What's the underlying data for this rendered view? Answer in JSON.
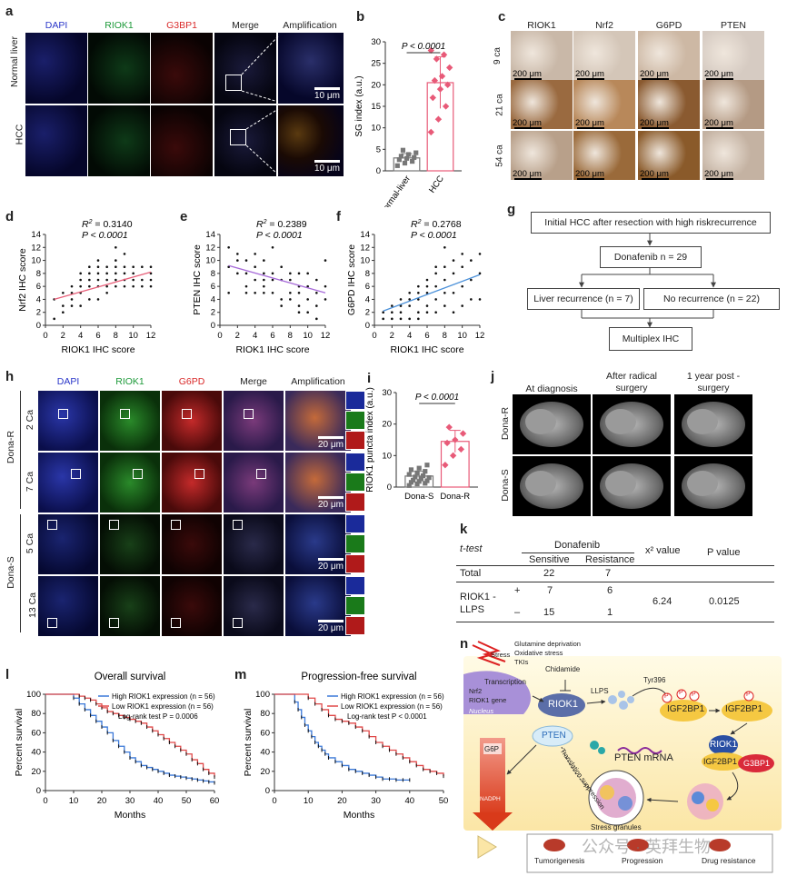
{
  "panels": {
    "a": {
      "label": "a",
      "columns": [
        "DAPI",
        "RIOK1",
        "G3BP1",
        "Merge",
        "Amplification"
      ],
      "column_colors": [
        "#2a36c9",
        "#1e9a3a",
        "#d92a2a",
        "#222222",
        "#222222"
      ],
      "rows": [
        "Normal liver",
        "HCC"
      ],
      "scale": "10 μm"
    },
    "b": {
      "label": "b",
      "ylabel": "SG index (a.u.)",
      "yticks": [
        "0",
        "5",
        "10",
        "15",
        "20",
        "25",
        "30"
      ],
      "categories": [
        "Normal-liver",
        "HCC"
      ],
      "pvalue": "P < 0.0001"
    },
    "c": {
      "label": "c",
      "columns": [
        "RIOK1",
        "Nrf2",
        "G6PD",
        "PTEN"
      ],
      "rows": [
        "9 ca",
        "21 ca",
        "54 ca"
      ],
      "scale": "200 μm"
    },
    "d": {
      "label": "d",
      "r2_prefix": "R",
      "r2_value": " = 0.3140",
      "p": "P < 0.0001",
      "ylabel": "Nrf2 IHC score",
      "xlabel": "RIOK1 IHC score"
    },
    "e": {
      "label": "e",
      "r2_prefix": "R",
      "r2_value": " = 0.2389",
      "p": "P < 0.0001",
      "ylabel": "PTEN IHC score",
      "xlabel": "RIOK1 IHC score"
    },
    "f": {
      "label": "f",
      "r2_prefix": "R",
      "r2_value": " = 0.2768",
      "p": "P < 0.0001",
      "ylabel": "G6PD IHC score",
      "xlabel": "RIOK1 IHC score"
    },
    "g": {
      "label": "g",
      "box1": "Initial HCC after resection with high riskrecurrence",
      "box2": "Donafenib n = 29",
      "box3": "Liver recurrence (n = 7)",
      "box4": "No recurrence (n = 22)",
      "box5": "Multiplex IHC"
    },
    "h": {
      "label": "h",
      "columns": [
        "DAPI",
        "RIOK1",
        "G6PD",
        "Merge",
        "Amplification"
      ],
      "column_colors": [
        "#2a36c9",
        "#1e9a3a",
        "#d92a2a",
        "#222222",
        "#222222"
      ],
      "rows": [
        "2 Ca",
        "7 Ca",
        "5 Ca",
        "13 Ca"
      ],
      "groups": [
        "Dona-R",
        "Dona-S"
      ],
      "scale": "20 μm"
    },
    "i": {
      "label": "i",
      "ylabel": "RIOK1 puncta index (a.u.)",
      "yticks": [
        "0",
        "10",
        "20",
        "30"
      ],
      "categories": [
        "Dona-S",
        "Dona-R"
      ],
      "pvalue": "P < 0.0001"
    },
    "j": {
      "label": "j",
      "columns": [
        "At diagnosis",
        "After radical surgery",
        "1 year post -surgery"
      ],
      "rows": [
        "Dona-R",
        "Dona-S"
      ]
    },
    "k": {
      "label": "k",
      "test": "t-test",
      "group": "Donafenib",
      "sensitive": "Sensitive",
      "resistance": "Resistance",
      "chi": "x² value",
      "pcol": "P value",
      "total": "Total",
      "total_s": "22",
      "total_r": "7",
      "row_label": "RIOK1 - LLPS",
      "plus": "+",
      "minus": "–",
      "plus_s": "7",
      "plus_r": "6",
      "minus_s": "15",
      "minus_r": "1",
      "chi_value": "6.24",
      "p_value": "0.0125"
    },
    "l": {
      "label": "l",
      "title": "Overall survival",
      "legend_high": "High RIOK1 expression (n = 56)",
      "legend_low": "Low RIOK1 expression (n = 56)",
      "test": "Log-rank test P = 0.0006",
      "ylabel": "Percent survival",
      "xlabel": "Months"
    },
    "m": {
      "label": "m",
      "title": "Progression-free survival",
      "legend_high": "High RIOK1 expression (n = 56)",
      "legend_low": "Low RIOK1 expression (n = 56)",
      "test": "Log-rank test P < 0.0001",
      "ylabel": "Percent survival",
      "xlabel": "Months"
    },
    "n": {
      "label": "n",
      "stress": "Stress",
      "stress_items": [
        "Glutamine deprivation",
        "Oxidative stress",
        "TKIs"
      ],
      "chidamide": "Chidamide",
      "transcription": "Transcription",
      "nrf2": "Nrf2",
      "riok1_gene": "RIOK1 gene",
      "nucleus": "Nucleus",
      "riok1": "RIOK1",
      "llps": "LLPS",
      "tyr": "Tyr396",
      "igf2bp1": "IGF2BP1",
      "g3bp1": "G3BP1",
      "p": "P",
      "pten": "PTEN",
      "pten_mrna": "PTEN mRNA",
      "translation": "Translation suppression",
      "g6p": "G6P",
      "nadph": "NADPH",
      "stress_granules": "Stress granules",
      "outcomes": [
        "Tumorigenesis",
        "Progression",
        "Drug resistance"
      ],
      "watermark": "公众号 · 英拜生物"
    }
  },
  "chart_data": [
    {
      "type": "bar",
      "panel": "b",
      "categories": [
        "Normal-liver",
        "HCC"
      ],
      "values": [
        3,
        20.5
      ],
      "errors": [
        1,
        6
      ],
      "ylabel": "SG index (a.u.)",
      "ylim": [
        0,
        30
      ],
      "points": [
        [
          1.2,
          1.8,
          2.2,
          2.6,
          2.9,
          3.1,
          3.4,
          3.8,
          4.2,
          4.8
        ],
        [
          9,
          12,
          15,
          17,
          19,
          20,
          21,
          22,
          24,
          26,
          27,
          28
        ]
      ]
    },
    {
      "type": "scatter",
      "panel": "d",
      "xlabel": "RIOK1 IHC score",
      "ylabel": "Nrf2 IHC score",
      "xlim": [
        0,
        12
      ],
      "ylim": [
        0,
        14
      ],
      "fit": [
        [
          1,
          4
        ],
        [
          12,
          8.2
        ]
      ],
      "x": [
        1,
        1,
        2,
        2,
        2,
        3,
        3,
        3,
        3,
        4,
        4,
        4,
        4,
        4,
        5,
        5,
        5,
        5,
        5,
        6,
        6,
        6,
        6,
        6,
        6,
        7,
        7,
        7,
        7,
        7,
        8,
        8,
        8,
        8,
        8,
        8,
        9,
        9,
        9,
        9,
        9,
        10,
        10,
        10,
        10,
        11,
        11,
        11,
        12,
        12,
        12,
        12
      ],
      "y": [
        1,
        4,
        2,
        3,
        5,
        3,
        4,
        5,
        6,
        3,
        5,
        6,
        7,
        8,
        4,
        6,
        7,
        8,
        9,
        4,
        6,
        7,
        8,
        9,
        10,
        5,
        6,
        7,
        8,
        9,
        6,
        7,
        8,
        9,
        10,
        12,
        6,
        7,
        8,
        9,
        11,
        6,
        7,
        8,
        9,
        6,
        7,
        9,
        6,
        7,
        8,
        9
      ]
    },
    {
      "type": "scatter",
      "panel": "e",
      "xlabel": "RIOK1 IHC score",
      "ylabel": "PTEN IHC score",
      "xlim": [
        0,
        12
      ],
      "ylim": [
        0,
        14
      ],
      "fit": [
        [
          1,
          9.2
        ],
        [
          12,
          5
        ]
      ],
      "x": [
        1,
        1,
        1,
        2,
        2,
        2,
        3,
        3,
        3,
        3,
        4,
        4,
        4,
        4,
        5,
        5,
        5,
        5,
        5,
        6,
        6,
        6,
        6,
        7,
        7,
        7,
        7,
        8,
        8,
        8,
        8,
        9,
        9,
        9,
        9,
        9,
        10,
        10,
        10,
        10,
        11,
        11,
        11,
        11,
        12,
        12,
        12
      ],
      "y": [
        12,
        9,
        5,
        11,
        8,
        10,
        10,
        8,
        6,
        5,
        11,
        9,
        7,
        5,
        10,
        8,
        7,
        6,
        5,
        12,
        8,
        7,
        5,
        9,
        7,
        4,
        3,
        8,
        7,
        5,
        4,
        8,
        6,
        5,
        3,
        2,
        8,
        6,
        4,
        2,
        7,
        5,
        3,
        1,
        10,
        6,
        4
      ]
    },
    {
      "type": "scatter",
      "panel": "f",
      "xlabel": "RIOK1 IHC score",
      "ylabel": "G6PD IHC score",
      "xlim": [
        0,
        12
      ],
      "ylim": [
        0,
        14
      ],
      "fit": [
        [
          1,
          2.2
        ],
        [
          12,
          7.8
        ]
      ],
      "x": [
        1,
        1,
        2,
        2,
        2,
        3,
        3,
        3,
        3,
        4,
        4,
        4,
        4,
        5,
        5,
        5,
        5,
        5,
        6,
        6,
        6,
        6,
        6,
        7,
        7,
        7,
        7,
        7,
        8,
        8,
        8,
        8,
        8,
        9,
        9,
        9,
        9,
        10,
        10,
        10,
        10,
        11,
        11,
        11,
        12,
        12,
        12
      ],
      "y": [
        1,
        2,
        1,
        2,
        3,
        1,
        2,
        3,
        4,
        1,
        3,
        4,
        5,
        1,
        2,
        4,
        5,
        6,
        2,
        3,
        5,
        6,
        7,
        2,
        4,
        6,
        8,
        9,
        3,
        5,
        7,
        9,
        12,
        2,
        5,
        8,
        10,
        3,
        6,
        9,
        11,
        4,
        7,
        10,
        4,
        8,
        11
      ]
    },
    {
      "type": "bar",
      "panel": "i",
      "categories": [
        "Dona-S",
        "Dona-R"
      ],
      "values": [
        3.5,
        14.5
      ],
      "errors": [
        1.5,
        3.5
      ],
      "ylabel": "RIOK1 puncta index (a.u.)",
      "ylim": [
        0,
        30
      ],
      "points": [
        [
          0.5,
          1,
          1.2,
          1.5,
          1.8,
          2,
          2.2,
          2.6,
          3,
          3.2,
          3.6,
          4,
          4.5,
          5,
          5.5,
          6,
          7
        ],
        [
          7,
          10,
          12,
          14,
          15,
          17,
          19
        ]
      ]
    },
    {
      "type": "line",
      "panel": "l",
      "title": "Overall survival",
      "xlabel": "Months",
      "ylabel": "Percent survival",
      "xlim": [
        0,
        60
      ],
      "ylim": [
        0,
        100
      ],
      "series": [
        {
          "name": "High RIOK1 expression (n = 56)",
          "x": [
            0,
            8,
            10,
            12,
            14,
            16,
            18,
            20,
            22,
            24,
            26,
            28,
            30,
            32,
            34,
            36,
            38,
            40,
            42,
            44,
            46,
            48,
            50,
            52,
            54,
            56,
            58,
            60
          ],
          "y": [
            100,
            100,
            96,
            90,
            84,
            78,
            72,
            66,
            60,
            52,
            46,
            40,
            34,
            30,
            26,
            24,
            22,
            20,
            18,
            16,
            15,
            14,
            13,
            12,
            11,
            10,
            9,
            8
          ]
        },
        {
          "name": "Low RIOK1 expression (n = 56)",
          "x": [
            0,
            10,
            12,
            14,
            16,
            18,
            20,
            22,
            24,
            26,
            28,
            30,
            32,
            34,
            36,
            38,
            40,
            42,
            44,
            46,
            48,
            50,
            52,
            54,
            56,
            58,
            60
          ],
          "y": [
            100,
            100,
            98,
            96,
            94,
            90,
            86,
            82,
            80,
            78,
            76,
            74,
            72,
            70,
            66,
            62,
            58,
            54,
            50,
            46,
            42,
            38,
            32,
            28,
            22,
            18,
            14
          ]
        }
      ]
    },
    {
      "type": "line",
      "panel": "m",
      "title": "Progression-free survival",
      "xlabel": "Months",
      "ylabel": "Percent survival",
      "xlim": [
        0,
        50
      ],
      "ylim": [
        0,
        100
      ],
      "series": [
        {
          "name": "High RIOK1 expression (n = 56)",
          "x": [
            0,
            5,
            6,
            7,
            8,
            9,
            10,
            11,
            12,
            13,
            14,
            15,
            16,
            18,
            20,
            22,
            24,
            26,
            28,
            30,
            32,
            34,
            36,
            38,
            40
          ],
          "y": [
            100,
            100,
            92,
            84,
            76,
            68,
            62,
            56,
            50,
            46,
            42,
            38,
            34,
            30,
            26,
            22,
            20,
            18,
            16,
            14,
            12,
            12,
            11,
            11,
            11
          ]
        },
        {
          "name": "Low RIOK1 expression (n = 56)",
          "x": [
            0,
            8,
            10,
            12,
            14,
            16,
            18,
            20,
            22,
            24,
            26,
            28,
            30,
            32,
            34,
            36,
            38,
            40,
            42,
            44,
            46,
            48,
            50
          ],
          "y": [
            100,
            100,
            96,
            90,
            84,
            78,
            74,
            72,
            70,
            66,
            62,
            56,
            50,
            46,
            42,
            38,
            34,
            30,
            26,
            22,
            20,
            18,
            15
          ]
        }
      ]
    }
  ]
}
